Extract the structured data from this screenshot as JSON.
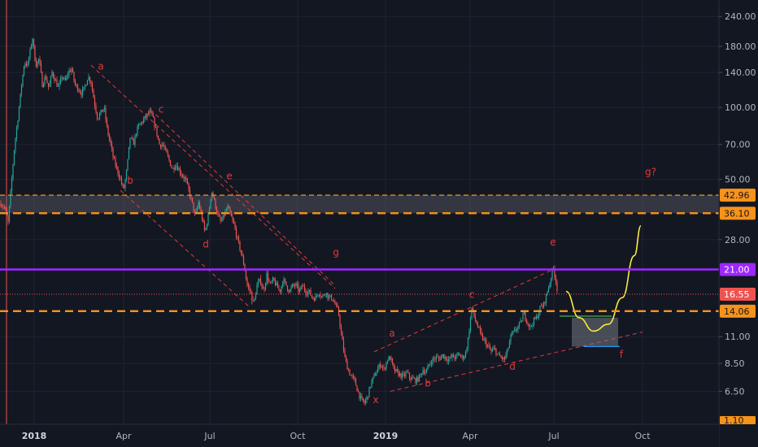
{
  "chart_data": {
    "type": "candlestick",
    "y_scale": "log",
    "ylim": [
      5.0,
      260.0
    ],
    "y_ticks": [
      "240.00",
      "180.00",
      "140.00",
      "100.00",
      "70.00",
      "50.00",
      "28.00",
      "11.00",
      "8.50",
      "6.50"
    ],
    "x_ticks": [
      {
        "label": "2018",
        "bold": true
      },
      {
        "label": "Apr",
        "bold": false
      },
      {
        "label": "Jul",
        "bold": false
      },
      {
        "label": "Oct",
        "bold": false
      },
      {
        "label": "2019",
        "bold": true
      },
      {
        "label": "Apr",
        "bold": false
      },
      {
        "label": "Jul",
        "bold": false
      },
      {
        "label": "Oct",
        "bold": false
      }
    ],
    "price_segments": [
      [
        0,
        40
      ],
      [
        6,
        38
      ],
      [
        10,
        33
      ],
      [
        14,
        48
      ],
      [
        18,
        70
      ],
      [
        22,
        90
      ],
      [
        26,
        120
      ],
      [
        30,
        155
      ],
      [
        34,
        150
      ],
      [
        38,
        180
      ],
      [
        40,
        195
      ],
      [
        44,
        150
      ],
      [
        48,
        160
      ],
      [
        52,
        125
      ],
      [
        56,
        135
      ],
      [
        60,
        120
      ],
      [
        64,
        140
      ],
      [
        68,
        130
      ],
      [
        72,
        120
      ],
      [
        76,
        135
      ],
      [
        80,
        128
      ],
      [
        84,
        140
      ],
      [
        88,
        145
      ],
      [
        92,
        125
      ],
      [
        96,
        120
      ],
      [
        100,
        115
      ],
      [
        104,
        120
      ],
      [
        108,
        135
      ],
      [
        112,
        128
      ],
      [
        116,
        105
      ],
      [
        120,
        90
      ],
      [
        124,
        95
      ],
      [
        128,
        100
      ],
      [
        132,
        80
      ],
      [
        136,
        70
      ],
      [
        140,
        60
      ],
      [
        144,
        55
      ],
      [
        148,
        50
      ],
      [
        152,
        45
      ],
      [
        156,
        55
      ],
      [
        160,
        75
      ],
      [
        164,
        70
      ],
      [
        168,
        80
      ],
      [
        172,
        85
      ],
      [
        176,
        88
      ],
      [
        180,
        92
      ],
      [
        184,
        95
      ],
      [
        188,
        90
      ],
      [
        192,
        80
      ],
      [
        196,
        70
      ],
      [
        200,
        70
      ],
      [
        204,
        65
      ],
      [
        208,
        60
      ],
      [
        212,
        55
      ],
      [
        216,
        58
      ],
      [
        220,
        55
      ],
      [
        224,
        52
      ],
      [
        228,
        50
      ],
      [
        232,
        45
      ],
      [
        236,
        40
      ],
      [
        240,
        35
      ],
      [
        244,
        40
      ],
      [
        248,
        35
      ],
      [
        252,
        30
      ],
      [
        256,
        35
      ],
      [
        260,
        45
      ],
      [
        264,
        40
      ],
      [
        268,
        35
      ],
      [
        272,
        33
      ],
      [
        276,
        36
      ],
      [
        280,
        38
      ],
      [
        284,
        35
      ],
      [
        288,
        32
      ],
      [
        292,
        28
      ],
      [
        296,
        25
      ],
      [
        300,
        22
      ],
      [
        304,
        18
      ],
      [
        308,
        17
      ],
      [
        312,
        15
      ],
      [
        316,
        18
      ],
      [
        320,
        19
      ],
      [
        324,
        17
      ],
      [
        328,
        20
      ],
      [
        332,
        18
      ],
      [
        336,
        19
      ],
      [
        340,
        18
      ],
      [
        344,
        17
      ],
      [
        348,
        19
      ],
      [
        352,
        18
      ],
      [
        356,
        17
      ],
      [
        360,
        18
      ],
      [
        364,
        18
      ],
      [
        368,
        17
      ],
      [
        372,
        18
      ],
      [
        376,
        17
      ],
      [
        380,
        17
      ],
      [
        384,
        16
      ],
      [
        388,
        16
      ],
      [
        392,
        17
      ],
      [
        396,
        16
      ],
      [
        400,
        17
      ],
      [
        404,
        16
      ],
      [
        408,
        16
      ],
      [
        412,
        15
      ],
      [
        416,
        14
      ],
      [
        420,
        11
      ],
      [
        424,
        9
      ],
      [
        428,
        8
      ],
      [
        432,
        7.5
      ],
      [
        436,
        7.2
      ],
      [
        440,
        6.5
      ],
      [
        444,
        6.0
      ],
      [
        448,
        5.8
      ],
      [
        452,
        6.2
      ],
      [
        456,
        7.0
      ],
      [
        460,
        7.5
      ],
      [
        464,
        8.0
      ],
      [
        468,
        8.5
      ],
      [
        472,
        8.0
      ],
      [
        476,
        8.8
      ],
      [
        480,
        9.0
      ],
      [
        484,
        8.0
      ],
      [
        488,
        7.8
      ],
      [
        492,
        7.6
      ],
      [
        496,
        7.5
      ],
      [
        500,
        7.8
      ],
      [
        504,
        7.4
      ],
      [
        508,
        7.3
      ],
      [
        512,
        7.2
      ],
      [
        516,
        7.5
      ],
      [
        520,
        8.0
      ],
      [
        524,
        7.8
      ],
      [
        528,
        8.5
      ],
      [
        532,
        8.8
      ],
      [
        536,
        9.0
      ],
      [
        540,
        8.9
      ],
      [
        544,
        9.2
      ],
      [
        548,
        9.0
      ],
      [
        552,
        8.8
      ],
      [
        556,
        9.1
      ],
      [
        560,
        9.0
      ],
      [
        564,
        9.3
      ],
      [
        568,
        9.0
      ],
      [
        572,
        9.2
      ],
      [
        576,
        11.0
      ],
      [
        580,
        14.5
      ],
      [
        584,
        13.0
      ],
      [
        588,
        12.0
      ],
      [
        592,
        11.0
      ],
      [
        596,
        10.5
      ],
      [
        600,
        10.0
      ],
      [
        604,
        9.5
      ],
      [
        608,
        9.8
      ],
      [
        612,
        9.2
      ],
      [
        616,
        9.0
      ],
      [
        620,
        8.8
      ],
      [
        624,
        9.6
      ],
      [
        628,
        11.0
      ],
      [
        632,
        11.5
      ],
      [
        636,
        12.0
      ],
      [
        640,
        12.5
      ],
      [
        644,
        13.8
      ],
      [
        648,
        12.8
      ],
      [
        652,
        12.0
      ],
      [
        656,
        12.8
      ],
      [
        660,
        13.2
      ],
      [
        664,
        14.5
      ],
      [
        668,
        14.8
      ],
      [
        672,
        16.5
      ],
      [
        676,
        18.5
      ],
      [
        680,
        21.5
      ],
      [
        684,
        18.5
      ],
      [
        686,
        16.55
      ]
    ],
    "hlines": [
      {
        "value": 42.96,
        "color": "#f7931a",
        "style": "dashed",
        "label": "42.96",
        "badge_bg": "#f7931a",
        "badge_fg": "#131722"
      },
      {
        "value": 36.1,
        "color": "#f7931a",
        "style": "dashed-thick",
        "label": "36.10",
        "badge_bg": "#f7931a",
        "badge_fg": "#131722"
      },
      {
        "value": 21.0,
        "color": "#9c27ff",
        "style": "solid",
        "label": "21.00",
        "badge_bg": "#9c27ff",
        "badge_fg": "#ffffff"
      },
      {
        "value": 16.55,
        "color": "#ef5350",
        "style": "dotted",
        "label": "16.55",
        "badge_bg": "#ef5350",
        "badge_fg": "#ffffff"
      },
      {
        "value": 14.06,
        "color": "#f7931a",
        "style": "dashed-thick",
        "label": "14.06",
        "badge_bg": "#f7931a",
        "badge_fg": "#131722"
      }
    ],
    "bottom_badge": "1.10",
    "zone": {
      "from": 36.1,
      "to": 42.96,
      "color": "#5d606b"
    },
    "wave_labels": [
      {
        "text": "a",
        "x": 124,
        "y": 144
      },
      {
        "text": "b",
        "x": 160,
        "y": 48
      },
      {
        "text": "c",
        "x": 198,
        "y": 95
      },
      {
        "text": "d",
        "x": 253,
        "y": 26
      },
      {
        "text": "e",
        "x": 282,
        "y": 50
      },
      {
        "text": "f",
        "x": 310,
        "y": 15
      },
      {
        "text": "g",
        "x": 413,
        "y": 24
      },
      {
        "text": "x",
        "x": 462,
        "y": 5.8
      },
      {
        "text": "a",
        "x": 482,
        "y": 11.0
      },
      {
        "text": "b",
        "x": 526,
        "y": 6.8
      },
      {
        "text": "c",
        "x": 580,
        "y": 16.0
      },
      {
        "text": "d",
        "x": 630,
        "y": 8.0
      },
      {
        "text": "e",
        "x": 680,
        "y": 26.5
      },
      {
        "text": "f",
        "x": 764,
        "y": 9.0
      },
      {
        "text": "g?",
        "x": 800,
        "y": 52
      }
    ],
    "trendlines": [
      {
        "x1": 112,
        "y1": 150,
        "x2": 412,
        "y2": 17.5
      },
      {
        "x1": 148,
        "y1": 45,
        "x2": 308,
        "y2": 14.5
      },
      {
        "x1": 185,
        "y1": 98,
        "x2": 412,
        "y2": 18.0
      },
      {
        "x1": 460,
        "y1": 9.5,
        "x2": 680,
        "y2": 21.0
      },
      {
        "x1": 480,
        "y1": 6.5,
        "x2": 790,
        "y2": 11.5
      }
    ],
    "projection_curve": {
      "color": "#f5ec42",
      "points": [
        [
          696,
          17.0
        ],
        [
          712,
          13.2
        ],
        [
          730,
          11.6
        ],
        [
          748,
          12.4
        ],
        [
          765,
          16.0
        ],
        [
          780,
          24.0
        ],
        [
          788,
          32.0
        ]
      ]
    },
    "projection_box": {
      "x1": 703,
      "x2": 760,
      "y1": 10.0,
      "y2": 13.2,
      "color": "#8a8d96"
    },
    "projection_lines": [
      {
        "x1": 688,
        "x2": 752,
        "y": 13.4,
        "color": "#4caf50"
      },
      {
        "x1": 718,
        "x2": 762,
        "y": 10.0,
        "color": "#2196f3"
      }
    ]
  }
}
